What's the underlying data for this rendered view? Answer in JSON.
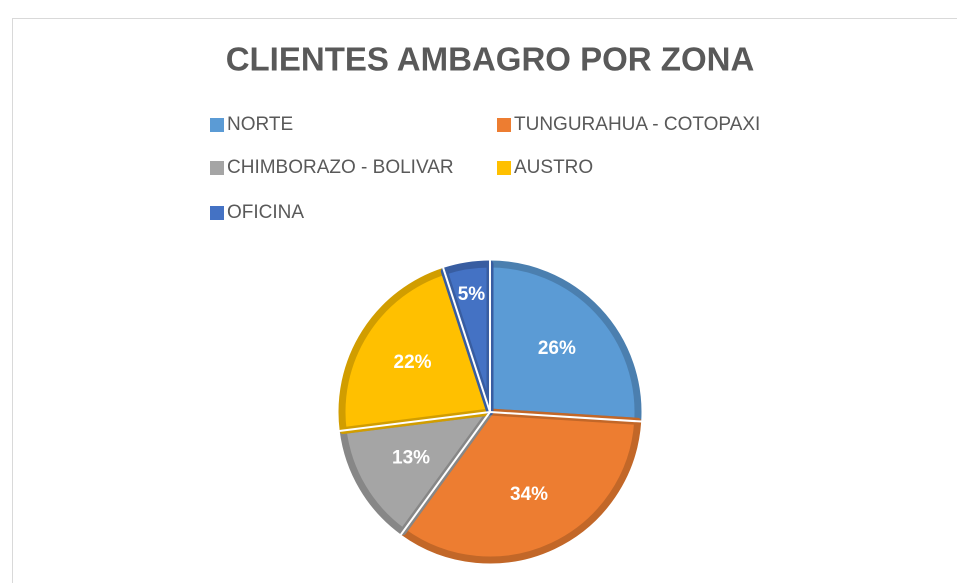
{
  "chart_data": {
    "type": "pie",
    "title": "CLIENTES AMBAGRO POR ZONA",
    "categories": [
      "NORTE",
      "TUNGURAHUA - COTOPAXI",
      "CHIMBORAZO - BOLIVAR",
      "AUSTRO",
      "OFICINA"
    ],
    "values": [
      26,
      34,
      13,
      22,
      5
    ],
    "value_labels": [
      "26%",
      "34%",
      "13%",
      "22%",
      "5%"
    ],
    "colors": [
      "#5b9bd5",
      "#ed7d31",
      "#a5a5a5",
      "#ffc000",
      "#4472c4"
    ],
    "legend": "top"
  }
}
